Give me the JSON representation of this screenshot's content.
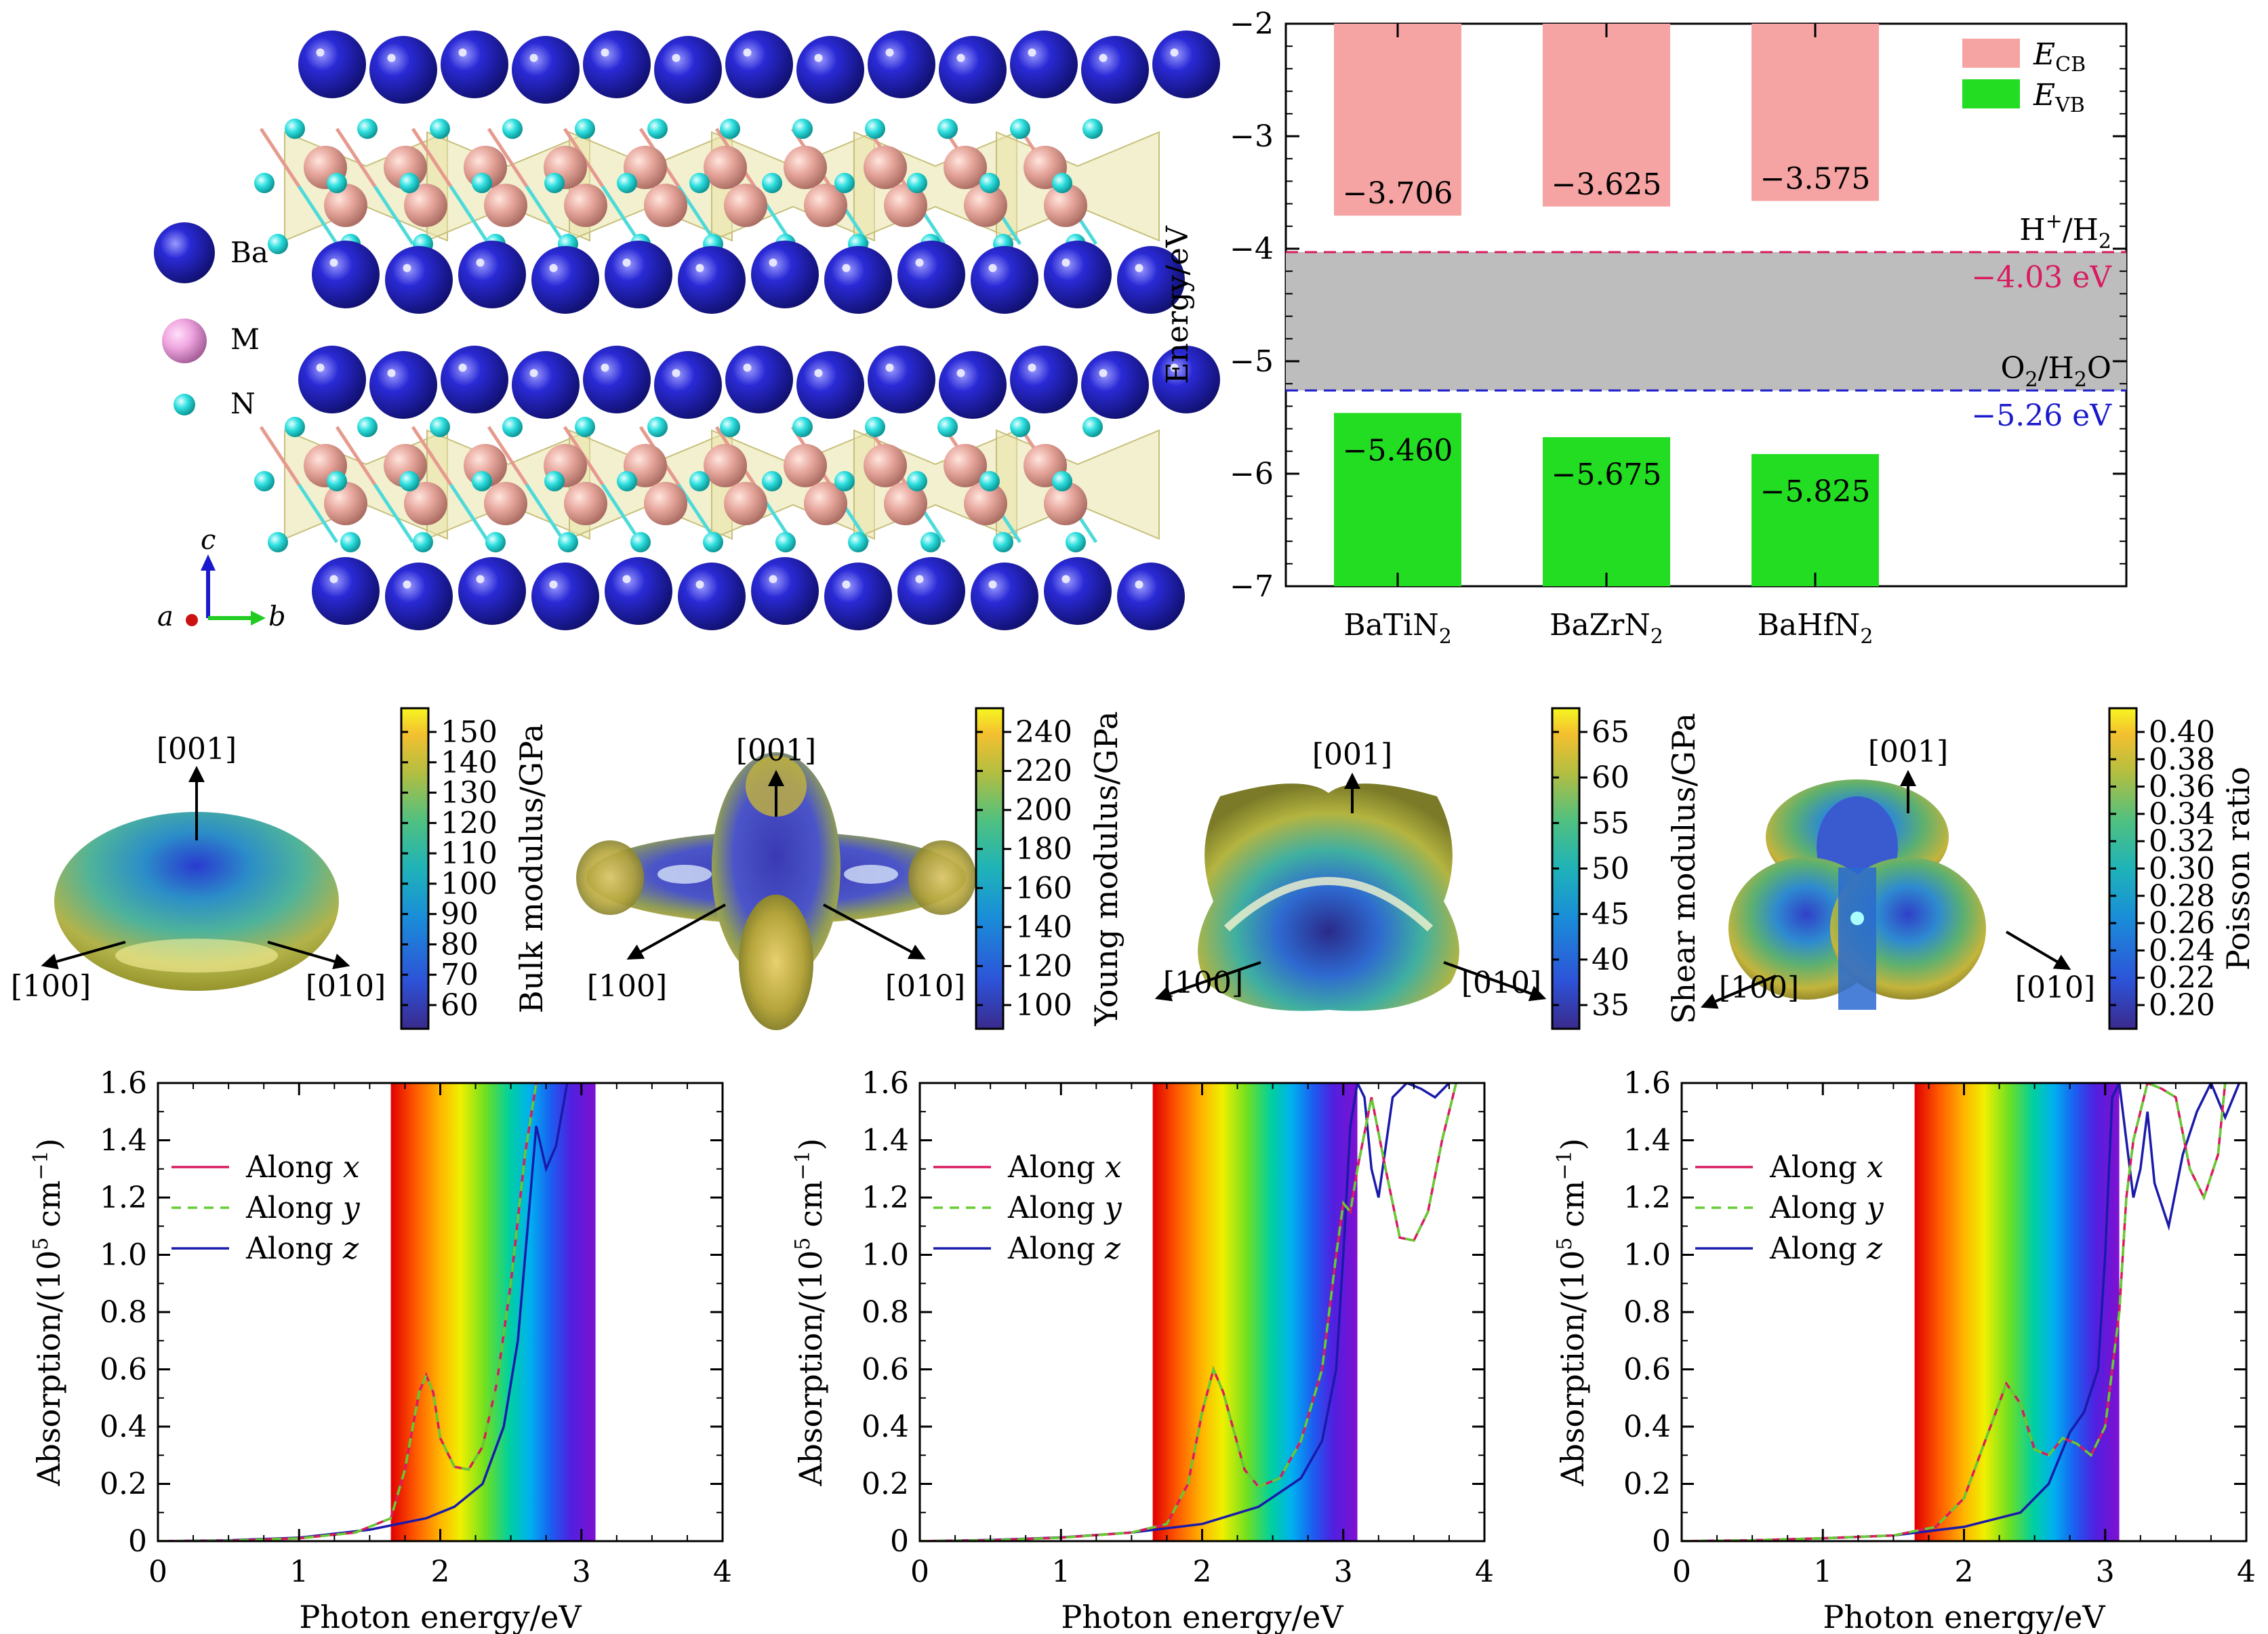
{
  "structure": {
    "legend": [
      {
        "symbol": "Ba",
        "color": "#1a1ab8"
      },
      {
        "symbol": "M",
        "color": "#f2a6dc"
      },
      {
        "symbol": "N",
        "color": "#22d6d6"
      }
    ],
    "axes": {
      "c": "c",
      "a": "a",
      "b": "b"
    },
    "colors": {
      "ba": "#1f1fbf",
      "m": "#e0a79c",
      "n": "#33dede",
      "poly": "#e8e2a6"
    }
  },
  "band_chart": {
    "type": "bar",
    "ylabel": "Energy/eV",
    "ylim": [
      -7,
      -2
    ],
    "yticks": [
      "−2",
      "−3",
      "−4",
      "−5",
      "−6",
      "−7"
    ],
    "categories": [
      "BaTiN",
      "BaZrN",
      "BaHfN"
    ],
    "category_sub": "2",
    "cb_values": [
      -3.706,
      -3.625,
      -3.575
    ],
    "vb_values": [
      -5.46,
      -5.675,
      -5.825
    ],
    "cb_labels": [
      "−3.706",
      "−3.625",
      "−3.575"
    ],
    "vb_labels": [
      "−5.460",
      "−5.675",
      "−5.825"
    ],
    "legend": {
      "cb_main": "E",
      "cb_sub": "CB",
      "vb_main": "E",
      "vb_sub": "VB"
    },
    "h_level": {
      "value": -4.03,
      "label": "−4.03 eV",
      "name_main": "H",
      "name_sup": "+",
      "name_rest": "/H",
      "name_sub": "2"
    },
    "o_level": {
      "value": -5.26,
      "label": "−5.26 eV",
      "name_main": "O",
      "name_sub": "2",
      "name_rest": "/H",
      "name_sub2": "2",
      "name_tail": "O"
    },
    "colors": {
      "cb": "#f5a3a3",
      "vb": "#22dd22",
      "band": "#bdbdbd",
      "h": "#d81b60",
      "o": "#1a1acc"
    }
  },
  "elastic": [
    {
      "label": "Bulk modulus/GPa",
      "ticks": [
        "150",
        "140",
        "130",
        "120",
        "110",
        "100",
        "90",
        "80",
        "70",
        "60"
      ],
      "dirs": {
        "top": "[001]",
        "left": "[100]",
        "right": "[010]"
      }
    },
    {
      "label": "Young modulus/GPa",
      "ticks": [
        "240",
        "220",
        "200",
        "180",
        "160",
        "140",
        "120",
        "100"
      ],
      "dirs": {
        "top": "[001]",
        "left": "[100]",
        "right": "[010]"
      }
    },
    {
      "label": "Shear modulus/GPa",
      "ticks": [
        "65",
        "60",
        "55",
        "50",
        "45",
        "40",
        "35"
      ],
      "dirs": {
        "top": "[001]",
        "left": "[100]",
        "right": "[010]"
      }
    },
    {
      "label": "Poisson ratio",
      "ticks": [
        "0.40",
        "0.38",
        "0.36",
        "0.34",
        "0.32",
        "0.30",
        "0.28",
        "0.26",
        "0.24",
        "0.22",
        "0.20"
      ],
      "dirs": {
        "top": "[001]",
        "left": "[100]",
        "right": "[010]"
      }
    }
  ],
  "absorption": {
    "xlabel": "Photon energy/eV",
    "ylabel_main": "Absorption/(10",
    "ylabel_sup": "5",
    "ylabel_unit": " cm",
    "ylabel_sup2": "−1",
    "ylabel_close": ")",
    "xlim": [
      0,
      4
    ],
    "ylim": [
      0,
      1.6
    ],
    "xticks": [
      "0",
      "1",
      "2",
      "3",
      "4"
    ],
    "yticks": [
      "0",
      "0.2",
      "0.4",
      "0.6",
      "0.8",
      "1.0",
      "1.2",
      "1.4",
      "1.6"
    ],
    "visible_range": [
      1.65,
      3.1
    ],
    "series_names": [
      "Along ",
      "Along ",
      "Along "
    ],
    "series_axes": [
      "x",
      "y",
      "z"
    ],
    "series_colors": [
      "#d81b60",
      "#66cc33",
      "#1a1aaa"
    ],
    "charts": [
      {
        "xy": [
          [
            0,
            0
          ],
          [
            0.5,
            0.002
          ],
          [
            1.0,
            0.01
          ],
          [
            1.4,
            0.03
          ],
          [
            1.65,
            0.08
          ],
          [
            1.75,
            0.25
          ],
          [
            1.85,
            0.52
          ],
          [
            1.9,
            0.58
          ],
          [
            1.95,
            0.52
          ],
          [
            2.0,
            0.36
          ],
          [
            2.1,
            0.26
          ],
          [
            2.2,
            0.25
          ],
          [
            2.3,
            0.33
          ],
          [
            2.4,
            0.55
          ],
          [
            2.5,
            0.9
          ],
          [
            2.6,
            1.35
          ],
          [
            2.68,
            1.6
          ]
        ],
        "z": [
          [
            0,
            0
          ],
          [
            0.5,
            0.003
          ],
          [
            1.0,
            0.012
          ],
          [
            1.5,
            0.04
          ],
          [
            1.9,
            0.08
          ],
          [
            2.1,
            0.12
          ],
          [
            2.3,
            0.2
          ],
          [
            2.45,
            0.4
          ],
          [
            2.55,
            0.7
          ],
          [
            2.62,
            1.1
          ],
          [
            2.68,
            1.45
          ],
          [
            2.75,
            1.3
          ],
          [
            2.82,
            1.38
          ],
          [
            2.9,
            1.6
          ]
        ]
      },
      {
        "xy": [
          [
            0,
            0
          ],
          [
            0.5,
            0.003
          ],
          [
            1.0,
            0.012
          ],
          [
            1.5,
            0.03
          ],
          [
            1.75,
            0.06
          ],
          [
            1.9,
            0.2
          ],
          [
            2.0,
            0.45
          ],
          [
            2.08,
            0.6
          ],
          [
            2.15,
            0.52
          ],
          [
            2.3,
            0.25
          ],
          [
            2.4,
            0.19
          ],
          [
            2.55,
            0.22
          ],
          [
            2.7,
            0.35
          ],
          [
            2.85,
            0.6
          ],
          [
            2.95,
            1.0
          ],
          [
            3.0,
            1.18
          ],
          [
            3.05,
            1.15
          ],
          [
            3.1,
            1.3
          ],
          [
            3.2,
            1.55
          ],
          [
            3.3,
            1.3
          ],
          [
            3.4,
            1.06
          ],
          [
            3.5,
            1.05
          ],
          [
            3.6,
            1.15
          ],
          [
            3.7,
            1.4
          ],
          [
            3.8,
            1.6
          ]
        ],
        "z": [
          [
            0,
            0
          ],
          [
            0.5,
            0.004
          ],
          [
            1.0,
            0.013
          ],
          [
            1.5,
            0.03
          ],
          [
            2.0,
            0.06
          ],
          [
            2.4,
            0.12
          ],
          [
            2.7,
            0.22
          ],
          [
            2.85,
            0.35
          ],
          [
            2.95,
            0.6
          ],
          [
            3.0,
            1.0
          ],
          [
            3.05,
            1.45
          ],
          [
            3.1,
            1.6
          ],
          [
            3.15,
            1.55
          ],
          [
            3.2,
            1.3
          ],
          [
            3.25,
            1.2
          ],
          [
            3.35,
            1.55
          ],
          [
            3.45,
            1.6
          ],
          [
            3.55,
            1.58
          ],
          [
            3.65,
            1.55
          ],
          [
            3.75,
            1.6
          ]
        ]
      },
      {
        "xy": [
          [
            0,
            0
          ],
          [
            0.5,
            0.003
          ],
          [
            1.0,
            0.01
          ],
          [
            1.5,
            0.02
          ],
          [
            1.8,
            0.05
          ],
          [
            2.0,
            0.15
          ],
          [
            2.15,
            0.35
          ],
          [
            2.3,
            0.55
          ],
          [
            2.4,
            0.48
          ],
          [
            2.5,
            0.32
          ],
          [
            2.6,
            0.3
          ],
          [
            2.7,
            0.36
          ],
          [
            2.8,
            0.34
          ],
          [
            2.9,
            0.3
          ],
          [
            3.0,
            0.4
          ],
          [
            3.1,
            0.8
          ],
          [
            3.15,
            1.2
          ],
          [
            3.2,
            1.4
          ],
          [
            3.3,
            1.6
          ],
          [
            3.4,
            1.58
          ],
          [
            3.5,
            1.55
          ],
          [
            3.6,
            1.3
          ],
          [
            3.7,
            1.2
          ],
          [
            3.8,
            1.35
          ],
          [
            3.85,
            1.6
          ]
        ],
        "z": [
          [
            0,
            0
          ],
          [
            0.5,
            0.003
          ],
          [
            1.0,
            0.01
          ],
          [
            1.5,
            0.02
          ],
          [
            2.0,
            0.05
          ],
          [
            2.4,
            0.1
          ],
          [
            2.6,
            0.2
          ],
          [
            2.75,
            0.38
          ],
          [
            2.85,
            0.45
          ],
          [
            2.95,
            0.6
          ],
          [
            3.0,
            1.0
          ],
          [
            3.05,
            1.55
          ],
          [
            3.1,
            1.6
          ],
          [
            3.15,
            1.4
          ],
          [
            3.2,
            1.2
          ],
          [
            3.25,
            1.3
          ],
          [
            3.3,
            1.5
          ],
          [
            3.35,
            1.25
          ],
          [
            3.45,
            1.1
          ],
          [
            3.55,
            1.35
          ],
          [
            3.65,
            1.5
          ],
          [
            3.75,
            1.6
          ],
          [
            3.85,
            1.48
          ],
          [
            3.95,
            1.6
          ]
        ]
      }
    ]
  }
}
